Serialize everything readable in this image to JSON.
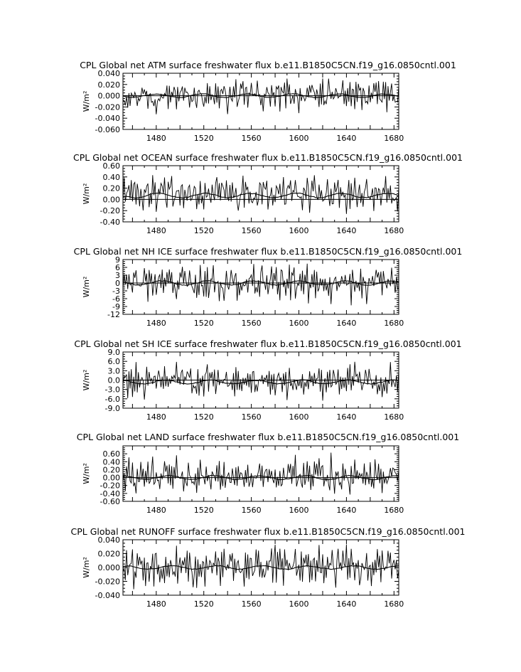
{
  "page": {
    "background": "#ffffff",
    "ink": "#000000"
  },
  "chart_data": [
    {
      "type": "line",
      "title": "CPL Global net ATM surface freshwater flux b.e11.B1850C5CN.f19_g16.0850cntl.001",
      "ylabel": "W/m²",
      "xlim": [
        1452,
        1684
      ],
      "ylim": [
        -0.06,
        0.04
      ],
      "yticks": [
        "0.040",
        "0.020",
        "0.000",
        "-0.020",
        "-0.040",
        "-0.060"
      ],
      "xticks": [
        1480,
        1520,
        1560,
        1600,
        1640,
        1680
      ],
      "zero_line": true,
      "series": [
        {
          "style": "annual",
          "start": 1452,
          "amp": 0.013,
          "bias": 0.0,
          "values": [
            0.0,
            0.01,
            -0.015,
            0.012,
            -0.01,
            0.03,
            -0.012,
            0.008,
            -0.02,
            0.015,
            -0.008,
            0.02,
            -0.025,
            0.01,
            0.005,
            -0.018,
            0.022,
            -0.012,
            0.03,
            -0.006,
            0.012,
            -0.02,
            0.008,
            0.025,
            -0.015,
            0.005,
            -0.01,
            0.018,
            -0.03,
            0.012
          ]
        },
        {
          "style": "decadal",
          "start": 1452,
          "amp": 0.004,
          "bias": 0.0,
          "values": []
        }
      ]
    },
    {
      "type": "line",
      "title": "CPL Global net OCEAN surface freshwater flux b.e11.B1850C5CN.f19_g16.0850cntl.001",
      "ylabel": "W/m²",
      "xlim": [
        1452,
        1684
      ],
      "ylim": [
        -0.4,
        0.6
      ],
      "yticks": [
        "0.60",
        "0.40",
        "0.20",
        "0.00",
        "-0.20",
        "-0.40"
      ],
      "xticks": [
        1480,
        1520,
        1560,
        1600,
        1640,
        1680
      ],
      "zero_line": true,
      "series": [
        {
          "style": "annual",
          "start": 1452,
          "amp": 0.14,
          "bias": 0.03,
          "values": [
            0.05,
            0.4,
            -0.1,
            0.2,
            0.1,
            0.52,
            -0.05,
            0.3,
            -0.2,
            0.15,
            0.25,
            -0.15,
            0.35,
            0.05,
            -0.1,
            0.5,
            0.1,
            -0.25,
            0.2,
            0.4
          ]
        },
        {
          "style": "decadal",
          "start": 1452,
          "amp": 0.05,
          "bias": 0.07,
          "values": []
        }
      ]
    },
    {
      "type": "line",
      "title": "CPL Global net NH ICE surface freshwater flux b.e11.B1850C5CN.f19_g16.0850cntl.001",
      "ylabel": "W/m²",
      "xlim": [
        1452,
        1684
      ],
      "ylim": [
        -12,
        9
      ],
      "yticks": [
        "9",
        "6",
        "3",
        "0",
        "-3",
        "-6",
        "-9",
        "-12"
      ],
      "xticks": [
        1480,
        1520,
        1560,
        1600,
        1640,
        1680
      ],
      "zero_line": true,
      "series": [
        {
          "style": "annual",
          "start": 1452,
          "amp": 3.2,
          "bias": 0.0,
          "values": [
            0,
            3,
            -4,
            5,
            -2,
            6,
            -7,
            2,
            -5,
            4,
            -3,
            7,
            -8,
            3,
            1,
            -4,
            6,
            -3,
            5,
            -1,
            8,
            -6,
            2,
            -2,
            4,
            -9,
            3,
            5,
            -4,
            2
          ]
        },
        {
          "style": "decadal",
          "start": 1452,
          "amp": 1.0,
          "bias": 0.0,
          "values": []
        }
      ]
    },
    {
      "type": "line",
      "title": "CPL Global net SH ICE surface freshwater flux b.e11.B1850C5CN.f19_g16.0850cntl.001",
      "ylabel": "W/m²",
      "xlim": [
        1452,
        1684
      ],
      "ylim": [
        -9,
        9
      ],
      "yticks": [
        "9.0",
        "6.0",
        "3.0",
        "0.0",
        "-3.0",
        "-6.0",
        "-9.0"
      ],
      "xticks": [
        1480,
        1520,
        1560,
        1600,
        1640,
        1680
      ],
      "zero_line": true,
      "series": [
        {
          "style": "annual",
          "start": 1452,
          "amp": 2.4,
          "bias": 0.0,
          "values": [
            0,
            2,
            -3,
            1,
            -5,
            3,
            -2,
            4,
            -6,
            2,
            -1,
            6.5,
            -4,
            2,
            -3,
            5,
            -2,
            3,
            -7,
            1,
            4,
            -3,
            2,
            -5,
            3,
            1,
            -2,
            4,
            -3,
            2
          ]
        },
        {
          "style": "decadal",
          "start": 1452,
          "amp": 0.8,
          "bias": -0.6,
          "values": []
        }
      ]
    },
    {
      "type": "line",
      "title": "CPL Global net LAND surface freshwater flux b.e11.B1850C5CN.f19_g16.0850cntl.001",
      "ylabel": "W/m²",
      "xlim": [
        1452,
        1684
      ],
      "ylim": [
        -0.6,
        0.8
      ],
      "yticks": [
        "0.60",
        "0.40",
        "0.20",
        "0.00",
        "-0.20",
        "-0.40",
        "-0.60"
      ],
      "xticks": [
        1480,
        1520,
        1560,
        1600,
        1640,
        1680
      ],
      "zero_line": true,
      "series": [
        {
          "style": "annual",
          "start": 1452,
          "amp": 0.19,
          "bias": 0.0,
          "values": [
            0.0,
            0.35,
            -0.3,
            0.2,
            -0.1,
            0.6,
            -0.25,
            0.1,
            0.3,
            -0.2,
            0.15,
            -0.35,
            0.4,
            0.05,
            -0.15,
            0.7,
            -0.1,
            0.25,
            -0.3,
            0.2
          ]
        },
        {
          "style": "decadal",
          "start": 1452,
          "amp": 0.06,
          "bias": 0.0,
          "values": []
        }
      ]
    },
    {
      "type": "line",
      "title": "CPL Global net RUNOFF surface freshwater flux b.e11.B1850C5CN.f19_g16.0850cntl.001",
      "ylabel": "W/m²",
      "xlim": [
        1452,
        1684
      ],
      "ylim": [
        -0.04,
        0.04
      ],
      "yticks": [
        "0.040",
        "0.020",
        "0.000",
        "-0.020",
        "-0.040"
      ],
      "xticks": [
        1480,
        1520,
        1560,
        1600,
        1640,
        1680
      ],
      "zero_line": false,
      "series": [
        {
          "style": "annual",
          "start": 1452,
          "amp": 0.013,
          "bias": 0.0,
          "values": [
            0.0,
            0.02,
            -0.025,
            0.015,
            -0.01,
            0.03,
            -0.02,
            0.01,
            0.035,
            -0.03,
            0.012,
            -0.015,
            0.02,
            -0.01,
            0.025,
            -0.02,
            0.03,
            -0.012,
            0.018,
            -0.025
          ]
        },
        {
          "style": "decadal",
          "start": 1452,
          "amp": 0.003,
          "bias": 0.0,
          "values": []
        }
      ]
    }
  ]
}
